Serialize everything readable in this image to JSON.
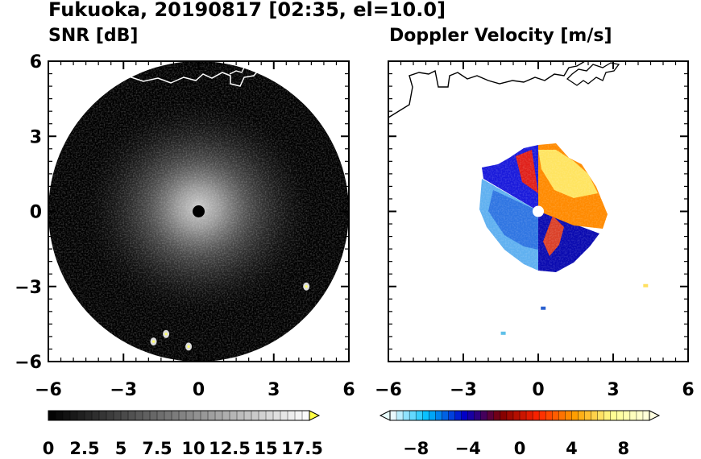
{
  "figure": {
    "title": "Fukuoka, 20190817 [02:35, el=10.0]"
  },
  "chart_data": [
    {
      "type": "heatmap",
      "title": "SNR [dB]",
      "xlim": [
        -6,
        6
      ],
      "ylim": [
        -6,
        6
      ],
      "xticks": [
        "−6",
        "−3",
        "0",
        "3",
        "6"
      ],
      "yticks": [
        "6",
        "3",
        "0",
        "−3",
        "−6"
      ],
      "tick_values": [
        -6,
        -3,
        0,
        3,
        6
      ],
      "range_radius": 6,
      "radar_site": [
        0,
        0
      ],
      "hotspots": [
        [
          -1.3,
          -4.9
        ],
        [
          -1.8,
          -5.2
        ],
        [
          -0.4,
          -5.4
        ],
        [
          4.3,
          -3.0
        ]
      ],
      "colorbar": {
        "min": 0,
        "max": 18,
        "step": 0.5,
        "labels": [
          "0",
          "2.5",
          "5",
          "7.5",
          "10",
          "12.5",
          "15",
          "17.5"
        ],
        "label_values": [
          0,
          2.5,
          5,
          7.5,
          10,
          12.5,
          15,
          17.5
        ],
        "extend": "max",
        "colors": [
          "#000000",
          "#ffffff",
          "#ffff44"
        ]
      }
    },
    {
      "type": "heatmap",
      "title": "Doppler Velocity [m/s]",
      "xlim": [
        -6,
        6
      ],
      "ylim": [
        -6,
        6
      ],
      "xticks": [
        "−6",
        "−3",
        "0",
        "3",
        "6"
      ],
      "tick_values": [
        -6,
        -3,
        0,
        3,
        6
      ],
      "radar_site": [
        0,
        0
      ],
      "outliers": [
        [
          4.3,
          -3.0
        ],
        [
          0.2,
          -3.9
        ],
        [
          -1.4,
          -4.9
        ]
      ],
      "colorbar": {
        "min": -10,
        "max": 10,
        "step": 0.5,
        "labels": [
          "−8",
          "−4",
          "0",
          "4",
          "8"
        ],
        "label_values": [
          -8,
          -4,
          0,
          4,
          8
        ],
        "extend": "both",
        "colors": [
          "#ffffff",
          "#00bfff",
          "#0000c8",
          "#800000",
          "#ff2400",
          "#ffa000",
          "#ffff90",
          "#ffffe0"
        ]
      }
    }
  ]
}
